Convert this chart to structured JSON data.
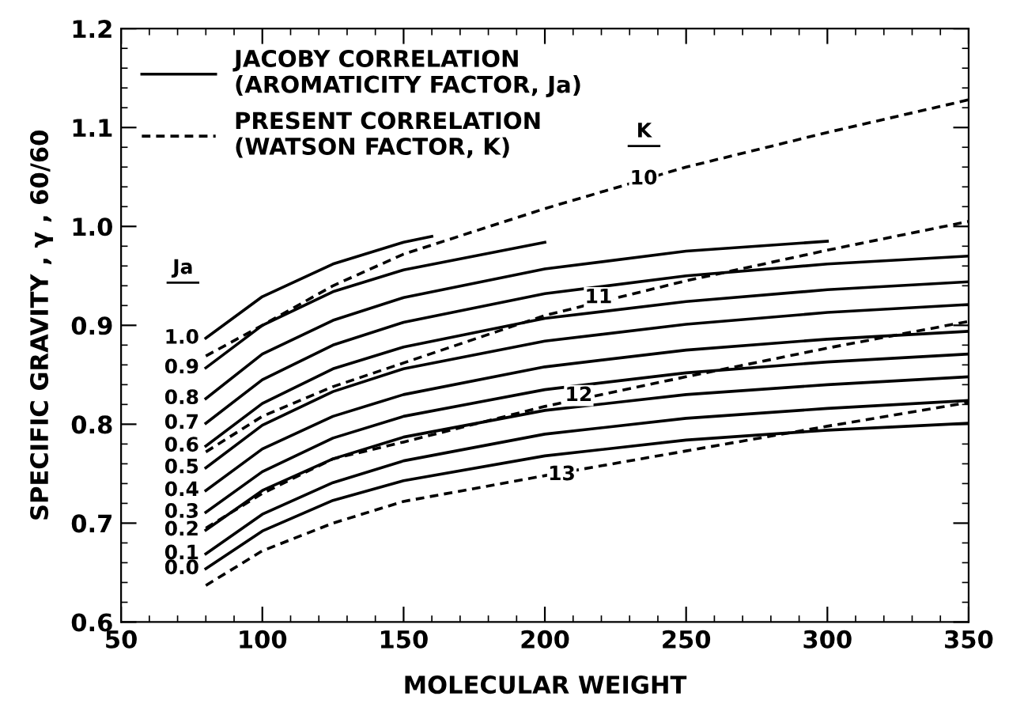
{
  "chart_data": {
    "type": "line",
    "xlabel": "MOLECULAR WEIGHT",
    "ylabel": "SPECIFIC GRAVITY , γ , 60/60",
    "xlim": [
      50,
      350
    ],
    "xticks": [
      50,
      100,
      150,
      200,
      250,
      300,
      350
    ],
    "ylim": [
      0.6,
      1.2
    ],
    "yticks": [
      {
        "value": 0.6,
        "label": "0.6"
      },
      {
        "value": 0.7,
        "label": "0.7"
      },
      {
        "value": 0.8,
        "label": "0.8"
      },
      {
        "value": 0.9,
        "label": "0.9"
      },
      {
        "value": 1.0,
        "label": "1.0"
      },
      {
        "value": 1.1,
        "label": "1.1"
      },
      {
        "value": 1.2,
        "label": "1.2"
      }
    ],
    "grid": false,
    "legend": "top left",
    "marker": "none",
    "x": [
      80,
      100,
      125,
      150,
      200,
      250,
      300,
      350
    ],
    "series": [
      {
        "name": "JACOBY CORRELATION\n(AROMATICITY FACTOR, Ja)",
        "color": "#000000",
        "line_style": "solid",
        "values": [
          0.654,
          0.692,
          0.723,
          0.743,
          0.768,
          0.784,
          0.794,
          0.801
        ]
      },
      {
        "color": "#000000",
        "line_style": "solid",
        "values": [
          0.669,
          0.709,
          0.741,
          0.763,
          0.79,
          0.806,
          0.816,
          0.824
        ]
      },
      {
        "color": "#000000",
        "line_style": "solid",
        "values": [
          0.693,
          0.733,
          0.765,
          0.787,
          0.814,
          0.83,
          0.84,
          0.848
        ]
      },
      {
        "color": "#000000",
        "line_style": "solid",
        "values": [
          0.711,
          0.752,
          0.786,
          0.808,
          0.835,
          0.852,
          0.863,
          0.871
        ]
      },
      {
        "color": "#000000",
        "line_style": "solid",
        "values": [
          0.733,
          0.775,
          0.808,
          0.83,
          0.858,
          0.875,
          0.886,
          0.894
        ]
      },
      {
        "color": "#000000",
        "line_style": "solid",
        "values": [
          0.756,
          0.799,
          0.833,
          0.856,
          0.884,
          0.901,
          0.913,
          0.921
        ]
      },
      {
        "color": "#000000",
        "line_style": "solid",
        "values": [
          0.778,
          0.821,
          0.856,
          0.878,
          0.907,
          0.924,
          0.936,
          0.944
        ]
      },
      {
        "color": "#000000",
        "line_style": "solid",
        "values": [
          0.801,
          0.845,
          0.88,
          0.903,
          0.932,
          0.95,
          0.962,
          0.97
        ]
      },
      {
        "color": "#000000",
        "line_style": "solid",
        "x": [
          80,
          100,
          125,
          150,
          200,
          250,
          300
        ],
        "values": [
          0.826,
          0.871,
          0.905,
          0.928,
          0.957,
          0.975,
          0.985
        ]
      },
      {
        "color": "#000000",
        "line_style": "solid",
        "x": [
          80,
          100,
          125,
          150,
          200
        ],
        "values": [
          0.857,
          0.9,
          0.934,
          0.956,
          0.984
        ]
      },
      {
        "color": "#000000",
        "line_style": "solid",
        "x": [
          80,
          100,
          125,
          150,
          160
        ],
        "values": [
          0.887,
          0.929,
          0.962,
          0.984,
          0.99
        ]
      },
      {
        "name": "PRESENT CORRELATION\n(WATSON FACTOR, K)",
        "color": "#000000",
        "line_style": "dashed",
        "values": [
          0.869,
          0.9,
          0.94,
          0.972,
          1.018,
          1.06,
          1.095,
          1.128
        ]
      },
      {
        "color": "#000000",
        "line_style": "dashed",
        "values": [
          0.772,
          0.808,
          0.838,
          0.862,
          0.91,
          0.945,
          0.976,
          1.005
        ]
      },
      {
        "color": "#000000",
        "line_style": "dashed",
        "values": [
          0.695,
          0.73,
          0.765,
          0.782,
          0.818,
          0.848,
          0.877,
          0.904
        ]
      },
      {
        "color": "#000000",
        "line_style": "dashed",
        "values": [
          0.637,
          0.672,
          0.7,
          0.722,
          0.748,
          0.773,
          0.798,
          0.822
        ]
      }
    ],
    "annotations": [
      {
        "text": "0.0",
        "x": 80,
        "y": 0.654
      },
      {
        "text": "0.1",
        "x": 80,
        "y": 0.669
      },
      {
        "text": "0.2",
        "x": 80,
        "y": 0.693
      },
      {
        "text": "0.3",
        "x": 80,
        "y": 0.711
      },
      {
        "text": "0.4",
        "x": 80,
        "y": 0.733
      },
      {
        "text": "0.5",
        "x": 80,
        "y": 0.756
      },
      {
        "text": "0.6",
        "x": 80,
        "y": 0.778
      },
      {
        "text": "0.7",
        "x": 80,
        "y": 0.801
      },
      {
        "text": "0.8",
        "x": 80,
        "y": 0.826
      },
      {
        "text": "0.9",
        "x": 80,
        "y": 0.857
      },
      {
        "text": "1.0",
        "x": 80,
        "y": 0.887
      },
      {
        "text": "10",
        "x": 235,
        "y": 1.048
      },
      {
        "text": "11",
        "x": 219,
        "y": 0.928
      },
      {
        "text": "12",
        "x": 212,
        "y": 0.829
      },
      {
        "text": "13",
        "x": 206,
        "y": 0.749
      },
      "Ja",
      "K"
    ]
  }
}
